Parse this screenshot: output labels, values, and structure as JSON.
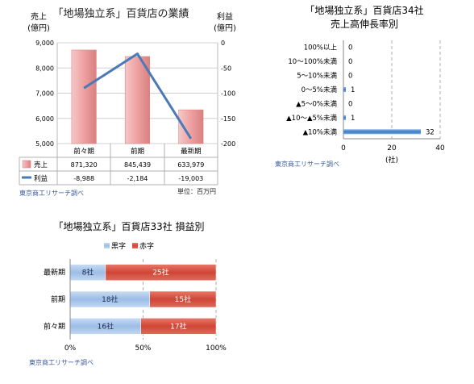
{
  "chart_data": [
    {
      "type": "bar+line",
      "title": "「地場独立系」百貨店の業績",
      "ylabel_left": [
        "売上",
        "(億円)"
      ],
      "ylabel_right": [
        "利益",
        "(億円)"
      ],
      "categories": [
        "前々期",
        "前期",
        "最新期"
      ],
      "ylim_left": [
        5000,
        9000
      ],
      "ylim_right": [
        -200,
        0
      ],
      "yticks_left": [
        "9,000",
        "8,000",
        "7,000",
        "6,000",
        "5,000"
      ],
      "yticks_right": [
        "0",
        "-50",
        "-100",
        "-150",
        "-200"
      ],
      "series": [
        {
          "name": "売上",
          "axis": "left",
          "kind": "bar",
          "values": [
            8713.2,
            8454.39,
            6339.79
          ],
          "labels": [
            "871,320",
            "845,439",
            "633,979"
          ]
        },
        {
          "name": "利益",
          "axis": "right",
          "kind": "line",
          "values": [
            -89.88,
            -21.84,
            -190.03
          ],
          "labels": [
            "-8,988",
            "-2,184",
            "-19,003"
          ]
        }
      ],
      "unit_note": "単位：百万円",
      "source": "東京商工リサーチ調べ"
    },
    {
      "type": "bar",
      "orientation": "horizontal",
      "title": [
        "「地場独立系」百貨店34社",
        "売上高伸長率別"
      ],
      "categories": [
        "100%以上",
        "10～100%未満",
        "5～10%未満",
        "0～5%未満",
        "▲5～0%未満",
        "▲10～▲5%未満",
        "▲10%未満"
      ],
      "values": [
        0,
        0,
        0,
        1,
        0,
        1,
        32
      ],
      "xlim": [
        0,
        40
      ],
      "xticks": [
        "0",
        "20",
        "40"
      ],
      "xlabel": "(社)",
      "source": "東京商工リサーチ調べ"
    },
    {
      "type": "bar",
      "orientation": "horizontal",
      "stacked": "100%",
      "title": "「地場独立系」百貨店33社 損益別",
      "categories": [
        "最新期",
        "前期",
        "前々期"
      ],
      "series": [
        {
          "name": "黒字",
          "values": [
            8,
            18,
            16
          ],
          "labels": [
            "8社",
            "18社",
            "16社"
          ]
        },
        {
          "name": "赤字",
          "values": [
            25,
            15,
            17
          ],
          "labels": [
            "25社",
            "15社",
            "17社"
          ]
        }
      ],
      "xticks": [
        "0%",
        "50%",
        "100%"
      ],
      "source": "東京商工リサーチ調べ"
    }
  ],
  "colors": {
    "sales_bar": "#eea8a8",
    "profit_line": "#4a7ab8",
    "growth_bar": "#5b8fd0",
    "black_seg": "#a9c7ec",
    "red_seg": "#d85848",
    "source_text": "#3a5a9a"
  }
}
